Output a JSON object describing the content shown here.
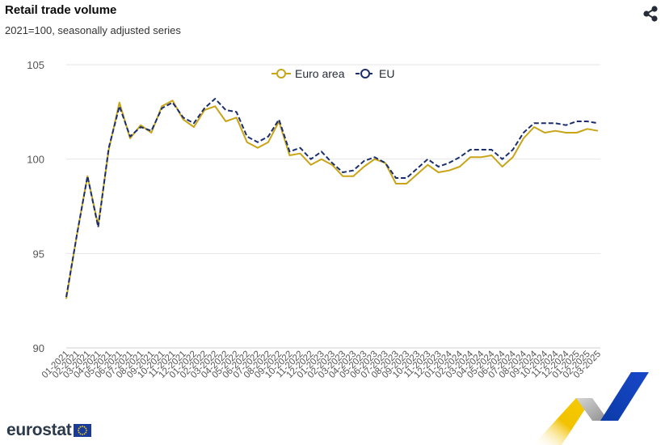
{
  "header": {
    "title": "Retail trade volume",
    "subtitle": "2021=100, seasonally adjusted series"
  },
  "branding": {
    "logo_text": "eurostat",
    "share_icon": "share-icon"
  },
  "colors": {
    "euro_area": "#c9a416",
    "eu": "#1b2f6e",
    "grid": "#e6e6e6",
    "axis_text": "#555555"
  },
  "chart_data": {
    "type": "line",
    "title": "Retail trade volume",
    "subtitle": "2021=100, seasonally adjusted series",
    "xlabel": "",
    "ylabel": "",
    "ylim": [
      90,
      105
    ],
    "yticks": [
      90,
      95,
      100,
      105
    ],
    "grid": true,
    "legend": "top-center",
    "x": [
      "01-2021",
      "02-2021",
      "03-2021",
      "04-2021",
      "05-2021",
      "06-2021",
      "07-2021",
      "08-2021",
      "09-2021",
      "10-2021",
      "11-2021",
      "12-2021",
      "01-2022",
      "02-2022",
      "03-2022",
      "04-2022",
      "05-2022",
      "06-2022",
      "07-2022",
      "08-2022",
      "09-2022",
      "10-2022",
      "11-2022",
      "12-2022",
      "01-2023",
      "02-2023",
      "03-2023",
      "04-2023",
      "05-2023",
      "06-2023",
      "07-2023",
      "08-2023",
      "09-2023",
      "10-2023",
      "11-2023",
      "12-2023",
      "01-2024",
      "02-2024",
      "03-2024",
      "04-2024",
      "05-2024",
      "06-2024",
      "07-2024",
      "08-2024",
      "09-2024",
      "10-2024",
      "11-2024",
      "12-2024",
      "01-2025",
      "02-2025",
      "03-2025"
    ],
    "series": [
      {
        "name": "Euro area",
        "style": "solid",
        "values": [
          92.6,
          96.0,
          99.1,
          96.5,
          100.5,
          103.0,
          101.1,
          101.8,
          101.4,
          102.8,
          103.1,
          102.1,
          101.7,
          102.6,
          102.8,
          102.0,
          102.2,
          100.9,
          100.6,
          100.9,
          102.0,
          100.2,
          100.3,
          99.7,
          100.0,
          99.7,
          99.1,
          99.1,
          99.6,
          100.0,
          99.8,
          98.7,
          98.7,
          99.2,
          99.7,
          99.3,
          99.4,
          99.6,
          100.1,
          100.1,
          100.2,
          99.6,
          100.1,
          101.1,
          101.7,
          101.4,
          101.5,
          101.4,
          101.4,
          101.6,
          101.5
        ]
      },
      {
        "name": "EU",
        "style": "dashed",
        "values": [
          92.7,
          96.0,
          99.1,
          96.4,
          100.6,
          102.8,
          101.2,
          101.7,
          101.5,
          102.7,
          103.0,
          102.2,
          101.9,
          102.7,
          103.2,
          102.6,
          102.5,
          101.2,
          100.9,
          101.2,
          102.1,
          100.4,
          100.6,
          100.0,
          100.4,
          99.8,
          99.3,
          99.4,
          99.9,
          100.1,
          99.8,
          99.0,
          99.0,
          99.5,
          100.0,
          99.6,
          99.8,
          100.1,
          100.5,
          100.5,
          100.5,
          100.0,
          100.5,
          101.4,
          101.9,
          101.9,
          101.9,
          101.8,
          102.0,
          102.0,
          101.9
        ]
      }
    ]
  }
}
